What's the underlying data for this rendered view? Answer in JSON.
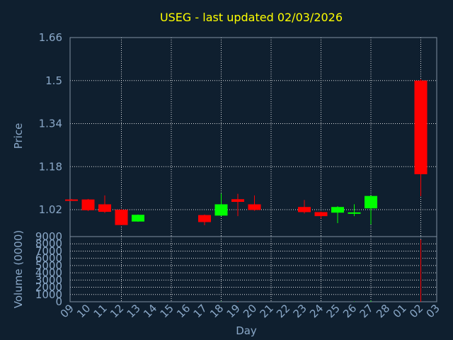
{
  "chart_data": {
    "type": "candlestick",
    "title": "USEG - last updated 02/03/2026",
    "xlabel": "Day",
    "x_tick_labels": [
      "09",
      "10",
      "11",
      "12",
      "13",
      "14",
      "15",
      "16",
      "17",
      "18",
      "19",
      "20",
      "21",
      "22",
      "23",
      "24",
      "25",
      "26",
      "27",
      "28",
      "01",
      "02",
      "03"
    ],
    "colors": {
      "background": "#0f1f2f",
      "up": "#00ff00",
      "down": "#ff0000",
      "title": "#ffff00",
      "axis_text": "#8aa8c8"
    },
    "price_panel": {
      "ylabel": "Price",
      "ylim": [
        0.92,
        1.66
      ],
      "y_ticks": [
        1.02,
        1.18,
        1.34,
        1.5,
        1.66
      ],
      "candles": [
        {
          "day": "09",
          "open": 1.058,
          "high": 1.06,
          "low": 1.054,
          "close": 1.056
        },
        {
          "day": "10",
          "open": 1.058,
          "high": 1.06,
          "low": 1.015,
          "close": 1.018
        },
        {
          "day": "11",
          "open": 1.04,
          "high": 1.073,
          "low": 1.008,
          "close": 1.012
        },
        {
          "day": "12",
          "open": 1.02,
          "high": 1.022,
          "low": 0.962,
          "close": 0.963
        },
        {
          "day": "13",
          "open": 0.976,
          "high": 1.002,
          "low": 0.975,
          "close": 1.001
        },
        {
          "day": "17",
          "open": 1.0,
          "high": 1.002,
          "low": 0.962,
          "close": 0.974
        },
        {
          "day": "18",
          "open": 0.998,
          "high": 1.08,
          "low": 0.996,
          "close": 1.04
        },
        {
          "day": "19",
          "open": 1.059,
          "high": 1.079,
          "low": 0.996,
          "close": 1.049
        },
        {
          "day": "20",
          "open": 1.04,
          "high": 1.073,
          "low": 1.016,
          "close": 1.019
        },
        {
          "day": "23",
          "open": 1.03,
          "high": 1.056,
          "low": 1.006,
          "close": 1.011
        },
        {
          "day": "24",
          "open": 1.011,
          "high": 1.013,
          "low": 0.987,
          "close": 0.996
        },
        {
          "day": "25",
          "open": 1.009,
          "high": 1.033,
          "low": 0.97,
          "close": 1.03
        },
        {
          "day": "26",
          "open": 1.006,
          "high": 1.04,
          "low": 0.996,
          "close": 1.01
        },
        {
          "day": "27",
          "open": 1.025,
          "high": 1.073,
          "low": 0.965,
          "close": 1.071
        },
        {
          "day": "02",
          "open": 1.5,
          "high": 1.505,
          "low": 1.07,
          "close": 1.152
        }
      ]
    },
    "volume_panel": {
      "ylabel": "Volume (0000)",
      "ylim": [
        0,
        9000
      ],
      "y_ticks": [
        0,
        1000,
        2000,
        3000,
        4000,
        5000,
        6000,
        7000,
        8000,
        9000
      ],
      "bars": [
        {
          "day": "18",
          "value": 40,
          "color": "up"
        },
        {
          "day": "19",
          "value": 60,
          "color": "down"
        },
        {
          "day": "26",
          "value": 50,
          "color": "up"
        },
        {
          "day": "27",
          "value": 150,
          "color": "up"
        },
        {
          "day": "02",
          "value": 8600,
          "color": "down"
        }
      ]
    }
  }
}
